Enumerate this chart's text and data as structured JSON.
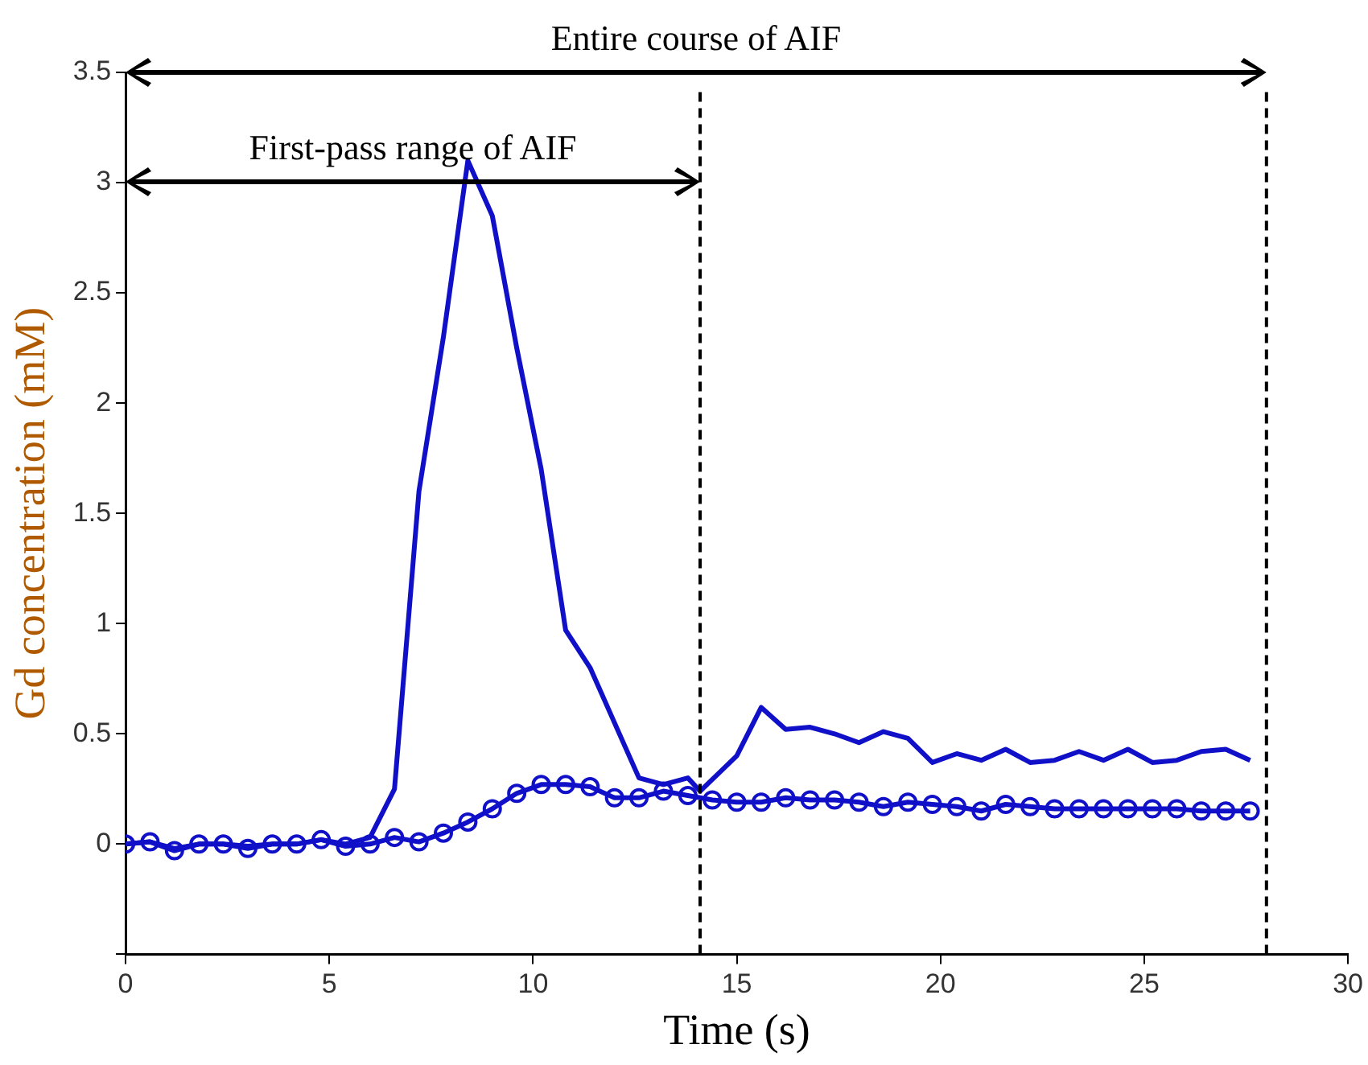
{
  "chart_data": {
    "type": "line",
    "xlabel": "Time (s)",
    "ylabel": "Gd concentration (mM)",
    "xlim": [
      0,
      30
    ],
    "xticks": [
      0,
      5,
      10,
      15,
      20,
      25,
      30
    ],
    "ylim": [
      -0.5,
      3.5
    ],
    "yticks": [
      {
        "value": -0.5,
        "label": null
      },
      0,
      0.5,
      1,
      1.5,
      2,
      2.5,
      3,
      3.5
    ],
    "grid": false,
    "legend": false,
    "series": [
      {
        "color": "#1010c8",
        "marker": "none",
        "x": [
          0,
          0.6,
          1.2,
          1.8,
          2.4,
          3.0,
          3.6,
          4.2,
          4.8,
          5.4,
          6.0,
          6.6,
          7.2,
          7.8,
          8.4,
          9.0,
          9.6,
          10.2,
          10.8,
          11.4,
          12.0,
          12.6,
          13.2,
          13.8,
          14.1,
          15.0,
          15.6,
          16.2,
          16.8,
          17.4,
          18.0,
          18.6,
          19.2,
          19.8,
          20.4,
          21.0,
          21.6,
          22.2,
          22.8,
          23.4,
          24.0,
          24.6,
          25.2,
          25.8,
          26.4,
          27.0,
          27.6
        ],
        "values": [
          0,
          0.01,
          -0.02,
          0,
          0,
          -0.01,
          0,
          0,
          0.02,
          0,
          0.03,
          0.25,
          1.6,
          2.3,
          3.1,
          2.85,
          2.25,
          1.7,
          0.97,
          0.8,
          0.55,
          0.3,
          0.27,
          0.3,
          0.24,
          0.4,
          0.62,
          0.52,
          0.53,
          0.5,
          0.46,
          0.51,
          0.48,
          0.37,
          0.41,
          0.38,
          0.43,
          0.37,
          0.38,
          0.42,
          0.38,
          0.43,
          0.37,
          0.38,
          0.42,
          0.43,
          0.38
        ]
      },
      {
        "color": "#1010c8",
        "marker": "circle",
        "x": [
          0,
          0.6,
          1.2,
          1.8,
          2.4,
          3.0,
          3.6,
          4.2,
          4.8,
          5.4,
          6.0,
          6.6,
          7.2,
          7.8,
          8.4,
          9.0,
          9.6,
          10.2,
          10.8,
          11.4,
          12.0,
          12.6,
          13.2,
          13.8,
          14.4,
          15.0,
          15.6,
          16.2,
          16.8,
          17.4,
          18.0,
          18.6,
          19.2,
          19.8,
          20.4,
          21.0,
          21.6,
          22.2,
          22.8,
          23.4,
          24.0,
          24.6,
          25.2,
          25.8,
          26.4,
          27.0,
          27.6
        ],
        "values": [
          0,
          0.01,
          -0.03,
          0,
          0,
          -0.02,
          0,
          0,
          0.02,
          -0.01,
          0,
          0.03,
          0.01,
          0.05,
          0.1,
          0.16,
          0.23,
          0.27,
          0.27,
          0.26,
          0.21,
          0.21,
          0.24,
          0.22,
          0.2,
          0.19,
          0.19,
          0.21,
          0.2,
          0.2,
          0.19,
          0.17,
          0.19,
          0.18,
          0.17,
          0.15,
          0.18,
          0.17,
          0.16,
          0.16,
          0.16,
          0.16,
          0.16,
          0.16,
          0.15,
          0.15,
          0.15
        ]
      }
    ],
    "ref_lines": [
      {
        "axis": "x",
        "value": 28,
        "color": "#000000",
        "line_style": "dashed"
      },
      {
        "axis": "x",
        "value": 14.1,
        "color": "#000000",
        "line_style": "dashed"
      }
    ],
    "annotations": [
      "Entire course of AIF",
      "First-pass range of AIF"
    ]
  }
}
